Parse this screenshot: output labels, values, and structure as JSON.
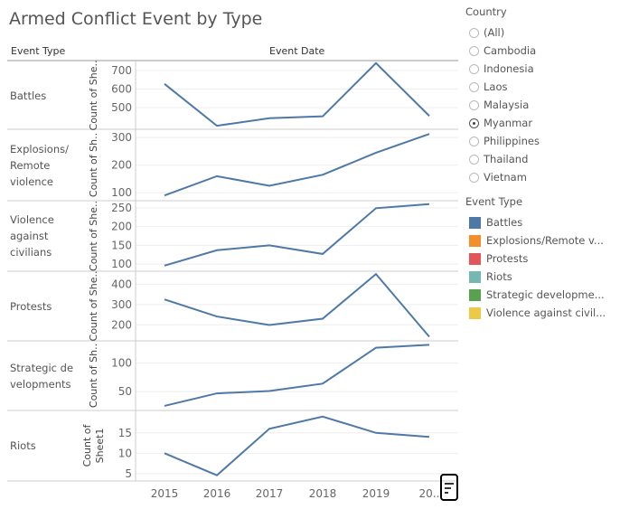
{
  "title": "Armed Conflict Event by Type",
  "headers": {
    "row": "Event Type",
    "col": "Event Date"
  },
  "country_filter": {
    "label": "Country",
    "options": [
      "(All)",
      "Cambodia",
      "Indonesia",
      "Laos",
      "Malaysia",
      "Myanmar",
      "Philippines",
      "Thailand",
      "Vietnam"
    ],
    "selected": "Myanmar"
  },
  "legend": {
    "label": "Event Type",
    "items": [
      {
        "label": "Battles",
        "color": "#4e79a7"
      },
      {
        "label": "Explosions/Remote v...",
        "color": "#f28e2b"
      },
      {
        "label": "Protests",
        "color": "#e15759"
      },
      {
        "label": "Riots",
        "color": "#76b7b2"
      },
      {
        "label": "Strategic developme...",
        "color": "#59a14f"
      },
      {
        "label": "Violence against civil...",
        "color": "#edc948"
      }
    ]
  },
  "chart_data": {
    "type": "line",
    "x": [
      "2015",
      "2016",
      "2017",
      "2018",
      "2019",
      "20.."
    ],
    "line_color": "#4e79a7",
    "grid": true,
    "panels": [
      {
        "name": "Battles",
        "row_label": [
          "Battles"
        ],
        "ylabel": "Count of She..",
        "ylim": [
          383,
          749
        ],
        "ticks": [
          500,
          600,
          700
        ],
        "values": [
          628,
          402,
          443,
          453,
          740,
          455
        ]
      },
      {
        "name": "Explosions/Remote violence",
        "row_label": [
          "Explosions/",
          "Remote",
          "violence"
        ],
        "ylabel": "Count of Sh..",
        "ylim": [
          71,
          330
        ],
        "ticks": [
          100,
          200,
          300
        ],
        "values": [
          90,
          160,
          125,
          165,
          245,
          313
        ]
      },
      {
        "name": "Violence against civilians",
        "row_label": [
          "Violence",
          "against",
          "civilians"
        ],
        "ylabel": "Count of She..",
        "ylim": [
          81,
          269
        ],
        "ticks": [
          100,
          150,
          200,
          250
        ],
        "values": [
          96,
          137,
          150,
          127,
          249,
          260
        ]
      },
      {
        "name": "Protests",
        "row_label": [
          "Protests"
        ],
        "ylabel": "Count of She..",
        "ylim": [
          121,
          464
        ],
        "ticks": [
          200,
          300,
          400
        ],
        "values": [
          325,
          241,
          199,
          230,
          450,
          141
        ]
      },
      {
        "name": "Strategic developments",
        "row_label": [
          "Strategic de",
          "velopments"
        ],
        "ylabel": "Count of Sh..",
        "ylim": [
          17,
          139
        ],
        "ticks": [
          50,
          100
        ],
        "values": [
          25,
          47,
          51,
          64,
          127,
          132
        ]
      },
      {
        "name": "Riots",
        "row_label": [
          "Riots"
        ],
        "ylabel": "Count of Sheet1",
        "ylim": [
          3.2,
          20.5
        ],
        "ticks": [
          5,
          10,
          15
        ],
        "values": [
          10,
          4.6,
          16,
          19,
          15,
          14
        ]
      }
    ]
  }
}
